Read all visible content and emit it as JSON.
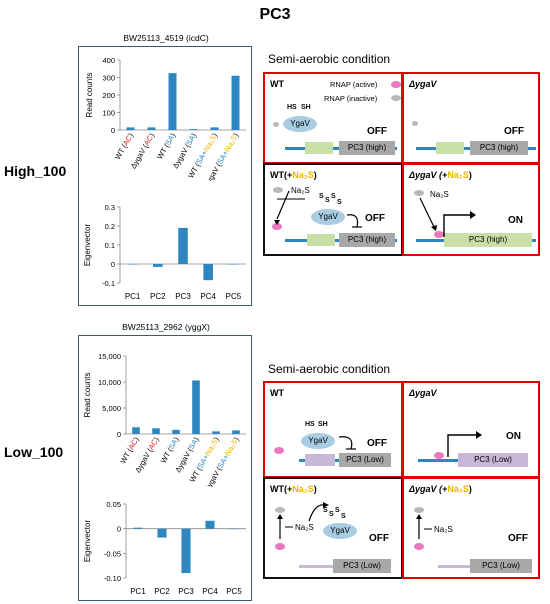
{
  "title": "PC3",
  "rows": [
    {
      "label": "High_100",
      "gene_title": "BW25113_4519 (icdC)",
      "condition_label": "Semi-aerobic condition"
    },
    {
      "label": "Low_100",
      "gene_title": "BW25113_2962 (yggX)",
      "condition_label": "Semi-aerobic condition"
    }
  ],
  "legend": {
    "active": "RNAP (active)",
    "inactive": "RNAP (inactive)"
  },
  "panels": {
    "high": {
      "wt": {
        "label": "WT",
        "state": "OFF",
        "gene": "PC3 (high)",
        "protein": "YgaV",
        "hs": "HS",
        "sh": "SH"
      },
      "dygav": {
        "label": "ΔygaV",
        "state": "OFF",
        "gene": "PC3 (high)"
      },
      "wt_na2s": {
        "label_a": "WT(+",
        "label_b": "Na₂S",
        "label_c": ")",
        "state": "OFF",
        "gene": "PC3 (high)",
        "protein": "YgaV",
        "na2s": "Na₂S",
        "s": "S"
      },
      "dygav_na2s": {
        "label_a": "ΔygaV (+",
        "label_b": "Na₂S",
        "label_c": ")",
        "state": "ON",
        "gene": "PC3 (high)",
        "na2s": "Na₂S"
      }
    },
    "low": {
      "wt": {
        "label": "WT",
        "state": "OFF",
        "gene": "PC3 (Low)",
        "protein": "YgaV",
        "hs": "HS",
        "sh": "SH"
      },
      "dygav": {
        "label": "ΔygaV",
        "state": "ON",
        "gene": "PC3 (Low)"
      },
      "wt_na2s": {
        "label_a": "WT(+",
        "label_b": "Na₂S",
        "label_c": ")",
        "state": "OFF",
        "gene": "PC3 (Low)",
        "protein": "YgaV",
        "na2s": "Na₂S",
        "s": "S"
      },
      "dygav_na2s": {
        "label_a": "ΔygaV (+",
        "label_b": "Na₂S",
        "label_c": ")",
        "state": "OFF",
        "gene": "PC3 (Low)",
        "na2s": "Na₂S"
      }
    }
  },
  "colors": {
    "bar": "#2e86c1",
    "red": "#e02020",
    "blue": "#2e86c1",
    "gold": "#f0b400",
    "gene_high": "#c8dfa8",
    "gene_low": "#c8b8d8",
    "box_gray": "#a8a8a8",
    "panel_red": "#e00000"
  },
  "chart_data": [
    {
      "type": "bar",
      "ylabel": "Read counts",
      "categories": [
        "WT (AC)",
        "ΔygaV (AC)",
        "WT (SA)",
        "ΔygaV (SA)",
        "WT (SA+Na₂S)",
        "ΔygaV (SA+Na₂S)"
      ],
      "values": [
        15,
        15,
        325,
        5,
        15,
        310
      ],
      "ylim": [
        0,
        400
      ],
      "yticks": [
        "0",
        "100",
        "200",
        "300",
        "400"
      ]
    },
    {
      "type": "bar",
      "ylabel": "Eigenvector",
      "categories": [
        "PC1",
        "PC2",
        "PC3",
        "PC4",
        "PC5"
      ],
      "values": [
        0,
        -0.015,
        0.19,
        -0.085,
        0
      ],
      "ylim": [
        -0.1,
        0.3
      ],
      "yticks": [
        "-0.1",
        "0",
        "0.1",
        "0.2",
        "0.3"
      ]
    },
    {
      "type": "bar",
      "ylabel": "Read counts",
      "categories": [
        "WT (AC)",
        "ΔygaV (AC)",
        "WT (SA)",
        "ΔygaV (SA)",
        "WT (SA+Na₂S)",
        "ΔygaV (SA+Na₂S)"
      ],
      "values": [
        1300,
        1100,
        800,
        10300,
        500,
        700
      ],
      "ylim": [
        0,
        15000
      ],
      "yticks": [
        "0",
        "5,000",
        "10,000",
        "15,000"
      ]
    },
    {
      "type": "bar",
      "ylabel": "Eigenvector",
      "categories": [
        "PC1",
        "PC2",
        "PC3",
        "PC4",
        "PC5"
      ],
      "values": [
        0.002,
        -0.018,
        -0.09,
        0.016,
        0
      ],
      "ylim": [
        -0.1,
        0.05
      ],
      "yticks": [
        "-0.10",
        "-0.05",
        "0",
        "0.05"
      ]
    }
  ]
}
